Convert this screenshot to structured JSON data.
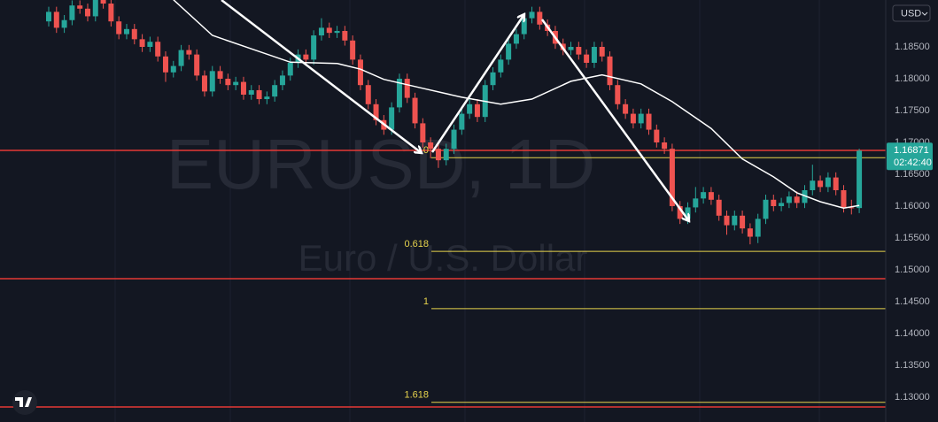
{
  "chart_data": {
    "type": "candlestick",
    "symbol_watermark": "EURUSD, 1D",
    "description_watermark": "Euro / U.S. Dollar",
    "currency": "USD",
    "up_color": "#26a69a",
    "down_color": "#ef5350",
    "xlim": [
      -6.25,
      107.4
    ],
    "ylim": [
      1.12611,
      1.19236
    ],
    "grid": true,
    "yticks": [
      {
        "value": 1.13,
        "label": "1.13000"
      },
      {
        "value": 1.135,
        "label": "1.13500"
      },
      {
        "value": 1.14,
        "label": "1.14000"
      },
      {
        "value": 1.145,
        "label": "1.14500"
      },
      {
        "value": 1.15,
        "label": "1.15000"
      },
      {
        "value": 1.155,
        "label": "1.15500"
      },
      {
        "value": 1.16,
        "label": "1.16000"
      },
      {
        "value": 1.165,
        "label": "1.16500"
      },
      {
        "value": 1.17,
        "label": "1.17000"
      },
      {
        "value": 1.175,
        "label": "1.17500"
      },
      {
        "value": 1.18,
        "label": "1.18000"
      },
      {
        "value": 1.185,
        "label": "1.18500"
      }
    ],
    "open": [
      1.189,
      1.1905,
      1.188,
      1.1892,
      1.1915,
      1.191,
      1.1898,
      1.1925,
      1.1918,
      1.189,
      1.187,
      1.1878,
      1.1862,
      1.185,
      1.1858,
      1.1835,
      1.181,
      1.182,
      1.1845,
      1.1838,
      1.1805,
      1.178,
      1.1812,
      1.18,
      1.179,
      1.1795,
      1.1775,
      1.1782,
      1.1768,
      1.1772,
      1.179,
      1.1805,
      1.1825,
      1.1838,
      1.183,
      1.1868,
      1.188,
      1.1872,
      1.1875,
      1.186,
      1.183,
      1.179,
      1.176,
      1.1735,
      1.172,
      1.1755,
      1.18,
      1.177,
      1.173,
      1.17,
      1.169,
      1.1672,
      1.169,
      1.172,
      1.1745,
      1.176,
      1.174,
      1.179,
      1.181,
      1.183,
      1.1855,
      1.187,
      1.1895,
      1.1905,
      1.1885,
      1.1875,
      1.1855,
      1.1845,
      1.185,
      1.1838,
      1.1825,
      1.185,
      1.1835,
      1.179,
      1.176,
      1.1745,
      1.173,
      1.1745,
      1.172,
      1.17,
      1.169,
      1.16,
      1.158,
      1.1598,
      1.1612,
      1.1622,
      1.161,
      1.1585,
      1.157,
      1.1585,
      1.1565,
      1.1552,
      1.158,
      1.161,
      1.16,
      1.1605,
      1.1615,
      1.1605,
      1.1625,
      1.164,
      1.163,
      1.1645,
      1.1625,
      1.1598,
      1.1597
    ],
    "high": [
      1.1913,
      1.1913,
      1.19,
      1.1923,
      1.1923,
      1.1918,
      1.1933,
      1.1933,
      1.1926,
      1.1898,
      1.1886,
      1.1886,
      1.187,
      1.1866,
      1.1866,
      1.1843,
      1.1828,
      1.1853,
      1.1853,
      1.1846,
      1.1813,
      1.182,
      1.182,
      1.1808,
      1.1803,
      1.1803,
      1.179,
      1.179,
      1.178,
      1.1798,
      1.1813,
      1.1833,
      1.1846,
      1.1846,
      1.1876,
      1.1895,
      1.1888,
      1.1883,
      1.1883,
      1.1868,
      1.1838,
      1.1798,
      1.1768,
      1.1743,
      1.1763,
      1.1808,
      1.1808,
      1.1778,
      1.1738,
      1.1708,
      1.1698,
      1.1698,
      1.1728,
      1.1753,
      1.1768,
      1.1768,
      1.1798,
      1.1818,
      1.1838,
      1.1863,
      1.1878,
      1.1903,
      1.1913,
      1.1913,
      1.1893,
      1.1883,
      1.1863,
      1.1858,
      1.1858,
      1.1846,
      1.1858,
      1.1858,
      1.1843,
      1.1798,
      1.1768,
      1.1753,
      1.1753,
      1.1753,
      1.1728,
      1.1708,
      1.1698,
      1.1608,
      1.1606,
      1.163,
      1.163,
      1.163,
      1.1618,
      1.1593,
      1.1593,
      1.1593,
      1.1573,
      1.1588,
      1.1618,
      1.1618,
      1.1613,
      1.1623,
      1.1623,
      1.1633,
      1.1665,
      1.1648,
      1.1653,
      1.1653,
      1.1633,
      1.161,
      1.169
    ],
    "low": [
      1.1882,
      1.1872,
      1.1872,
      1.1884,
      1.1902,
      1.189,
      1.189,
      1.191,
      1.1882,
      1.1862,
      1.1862,
      1.1854,
      1.1842,
      1.1842,
      1.1827,
      1.1795,
      1.1802,
      1.1812,
      1.183,
      1.1797,
      1.1772,
      1.1772,
      1.1792,
      1.1782,
      1.1782,
      1.1767,
      1.1767,
      1.176,
      1.176,
      1.1764,
      1.1782,
      1.1797,
      1.1817,
      1.1822,
      1.1822,
      1.186,
      1.1864,
      1.1864,
      1.1852,
      1.1822,
      1.1782,
      1.1752,
      1.1727,
      1.1712,
      1.1712,
      1.1747,
      1.1762,
      1.1722,
      1.1692,
      1.1675,
      1.166,
      1.1664,
      1.1682,
      1.1712,
      1.1737,
      1.1732,
      1.1732,
      1.1782,
      1.1802,
      1.1822,
      1.1847,
      1.1862,
      1.1887,
      1.1877,
      1.1867,
      1.1847,
      1.1837,
      1.1837,
      1.183,
      1.1817,
      1.1817,
      1.1827,
      1.1782,
      1.1752,
      1.1737,
      1.1722,
      1.1722,
      1.1712,
      1.1692,
      1.1682,
      1.1592,
      1.1572,
      1.1572,
      1.159,
      1.1604,
      1.1602,
      1.1577,
      1.1555,
      1.1562,
      1.1557,
      1.154,
      1.1542,
      1.1572,
      1.1592,
      1.1592,
      1.1597,
      1.1597,
      1.1597,
      1.1617,
      1.1622,
      1.1622,
      1.1617,
      1.159,
      1.1587,
      1.1589
    ],
    "close": [
      1.1905,
      1.188,
      1.1892,
      1.1915,
      1.191,
      1.1898,
      1.1925,
      1.1918,
      1.189,
      1.187,
      1.1878,
      1.1862,
      1.185,
      1.1858,
      1.1835,
      1.181,
      1.182,
      1.1845,
      1.1838,
      1.1805,
      1.178,
      1.1812,
      1.18,
      1.179,
      1.1795,
      1.1775,
      1.1782,
      1.1768,
      1.1772,
      1.179,
      1.1805,
      1.1825,
      1.1838,
      1.183,
      1.1868,
      1.188,
      1.1872,
      1.1875,
      1.186,
      1.183,
      1.179,
      1.176,
      1.1735,
      1.172,
      1.1755,
      1.18,
      1.177,
      1.173,
      1.17,
      1.169,
      1.1672,
      1.169,
      1.172,
      1.1745,
      1.176,
      1.174,
      1.179,
      1.181,
      1.183,
      1.1855,
      1.187,
      1.1895,
      1.1905,
      1.1885,
      1.1875,
      1.1855,
      1.1845,
      1.185,
      1.1838,
      1.1825,
      1.185,
      1.1835,
      1.179,
      1.176,
      1.1745,
      1.173,
      1.1745,
      1.172,
      1.17,
      1.169,
      1.16,
      1.158,
      1.1598,
      1.1612,
      1.1622,
      1.161,
      1.1585,
      1.157,
      1.1585,
      1.1565,
      1.1552,
      1.158,
      1.161,
      1.16,
      1.1605,
      1.1615,
      1.1605,
      1.1625,
      1.164,
      1.163,
      1.1645,
      1.1625,
      1.1598,
      1.1597,
      1.1687
    ],
    "moving_average": {
      "color": "#ffffff",
      "x": [
        16,
        21,
        26,
        31,
        37,
        40,
        43,
        48,
        53,
        58,
        62,
        67,
        71,
        76,
        80,
        85,
        89,
        93,
        96,
        99,
        102,
        104
      ],
      "values": [
        1.1924,
        1.1868,
        1.1847,
        1.1826,
        1.1824,
        1.1815,
        1.1799,
        1.1785,
        1.1771,
        1.176,
        1.1768,
        1.1796,
        1.1806,
        1.1792,
        1.1764,
        1.1722,
        1.1674,
        1.1646,
        1.1621,
        1.1607,
        1.1597,
        1.1601
      ]
    },
    "levels": {
      "color": "#e53935",
      "values": [
        1.16875,
        1.14861,
        1.12847
      ]
    },
    "fib_levels": {
      "color": "#e8d44d",
      "levels": [
        0,
        0.618,
        1,
        1.618
      ],
      "prices": [
        1.1676,
        1.1529,
        1.1439,
        1.1292
      ]
    },
    "last_price": 1.16871,
    "countdown": "02:42:40"
  }
}
